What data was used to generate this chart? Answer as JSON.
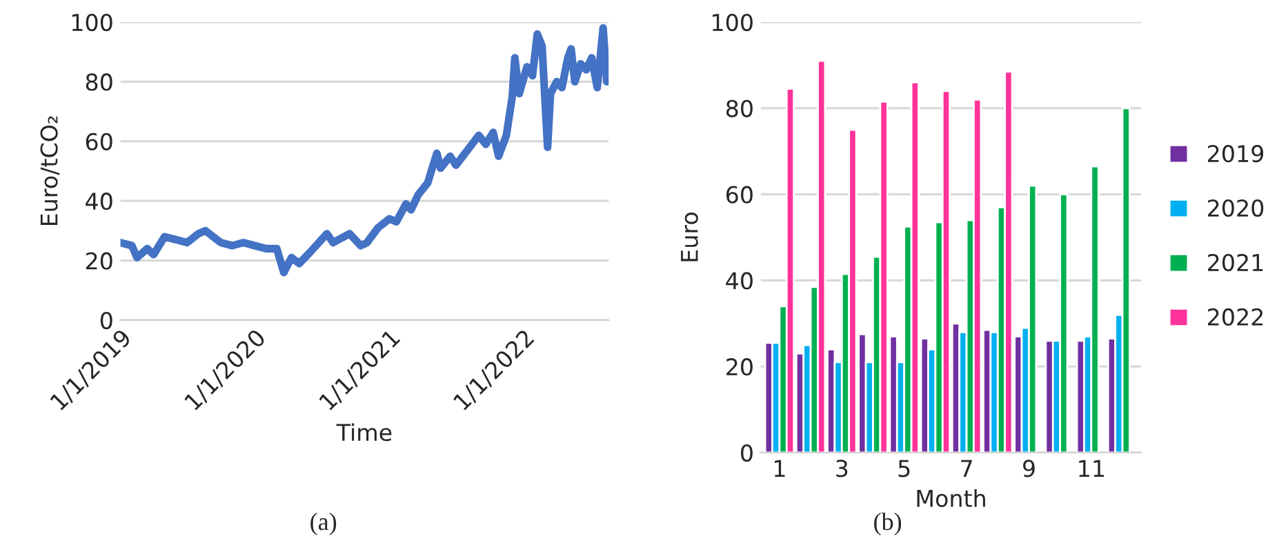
{
  "chart_data": [
    {
      "type": "line",
      "xlabel": "Time",
      "ylabel": "Euro/tCO₂",
      "annotations": [
        "(a)"
      ],
      "grid": "y",
      "marker": "none",
      "line_style": "solid",
      "xlim": [
        "2019-01-01",
        "2022-08-20"
      ],
      "xticks": [
        {
          "value": "2019-01-01",
          "label": "1/1/2019"
        },
        {
          "value": "2020-01-01",
          "label": "1/1/2020"
        },
        {
          "value": "2021-01-01",
          "label": "1/1/2021"
        },
        {
          "value": "2022-01-01",
          "label": "1/1/2022"
        }
      ],
      "ylim": [
        0,
        100
      ],
      "yticks": [
        0,
        20,
        40,
        60,
        80,
        100
      ],
      "series": [
        {
          "color": "#4472c4",
          "x": [
            "2019-01-01",
            "2019-02-01",
            "2019-02-15",
            "2019-03-15",
            "2019-04-01",
            "2019-05-01",
            "2019-06-01",
            "2019-07-01",
            "2019-08-01",
            "2019-08-20",
            "2019-10-01",
            "2019-11-01",
            "2019-12-01",
            "2020-01-01",
            "2020-02-01",
            "2020-03-01",
            "2020-03-20",
            "2020-04-10",
            "2020-05-01",
            "2020-06-01",
            "2020-07-15",
            "2020-08-01",
            "2020-09-15",
            "2020-10-15",
            "2020-11-01",
            "2020-12-01",
            "2021-01-01",
            "2021-01-20",
            "2021-02-15",
            "2021-03-01",
            "2021-03-20",
            "2021-04-15",
            "2021-05-10",
            "2021-05-20",
            "2021-06-15",
            "2021-07-01",
            "2021-08-01",
            "2021-09-01",
            "2021-09-20",
            "2021-10-10",
            "2021-10-25",
            "2021-11-15",
            "2021-12-01",
            "2021-12-08",
            "2021-12-20",
            "2022-01-10",
            "2022-01-25",
            "2022-02-07",
            "2022-02-20",
            "2022-03-07",
            "2022-03-15",
            "2022-04-01",
            "2022-04-15",
            "2022-05-01",
            "2022-05-10",
            "2022-05-20",
            "2022-06-05",
            "2022-06-20",
            "2022-07-05",
            "2022-07-20",
            "2022-08-05",
            "2022-08-15"
          ],
          "values": [
            26,
            25,
            21,
            24,
            22,
            28,
            27,
            26,
            29,
            30,
            26,
            25,
            26,
            25,
            24,
            24,
            16,
            21,
            19,
            23,
            29,
            26,
            29,
            25,
            26,
            31,
            34,
            33,
            39,
            37,
            42,
            46,
            56,
            51,
            55,
            52,
            57,
            62,
            59,
            63,
            55,
            62,
            75,
            88,
            76,
            85,
            82,
            96,
            92,
            58,
            76,
            80,
            78,
            88,
            91,
            80,
            86,
            84,
            88,
            78,
            98,
            80
          ]
        }
      ]
    },
    {
      "type": "bar",
      "xlabel": "Month",
      "ylabel": "Euro",
      "annotations": [
        "(b)"
      ],
      "grid": "y",
      "legend": "right",
      "categories": [
        "1",
        null,
        "3",
        null,
        "5",
        null,
        "7",
        null,
        "9",
        null,
        "11",
        null
      ],
      "ylim": [
        0,
        100
      ],
      "yticks": [
        0,
        20,
        40,
        60,
        80,
        100
      ],
      "series": [
        {
          "name": "2019",
          "color": "#7030a0",
          "values": [
            25.5,
            23,
            24,
            27.5,
            27,
            26.5,
            30,
            28.5,
            27,
            26,
            26,
            26.5
          ]
        },
        {
          "name": "2020",
          "color": "#00b0f0",
          "values": [
            25.5,
            25,
            21,
            21,
            21,
            24,
            28,
            28,
            29,
            26,
            27,
            32
          ]
        },
        {
          "name": "2021",
          "color": "#00b050",
          "values": [
            34,
            38.5,
            41.5,
            45.5,
            52.5,
            53.5,
            54,
            57,
            62,
            60,
            66.5,
            80
          ]
        },
        {
          "name": "2022",
          "color": "#ff3399",
          "values": [
            84.5,
            91,
            75,
            81.5,
            86,
            84,
            82,
            88.5,
            null,
            null,
            null,
            null
          ]
        }
      ]
    }
  ]
}
